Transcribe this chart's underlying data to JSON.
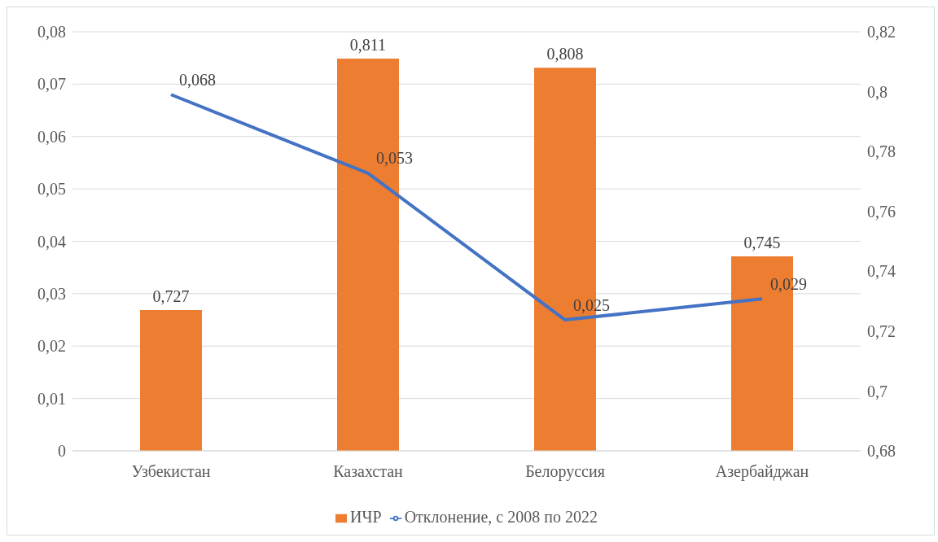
{
  "chart_data": {
    "type": "bar",
    "categories": [
      "Узбекистан",
      "Казахстан",
      "Белоруссия",
      "Азербайджан"
    ],
    "series": [
      {
        "name": "ИЧР",
        "axis": "y2",
        "color": "#ed7d31",
        "values": [
          0.727,
          0.811,
          0.808,
          0.745
        ],
        "value_labels": [
          "0,727",
          "0,811",
          "0,808",
          "0,745"
        ]
      },
      {
        "name": "Отклонение, с 2008 по 2022",
        "type": "line",
        "axis": "y",
        "color": "#4472c4",
        "values": [
          0.068,
          0.053,
          0.025,
          0.029
        ],
        "value_labels": [
          "0,068",
          "0,053",
          "0,025",
          "0,029"
        ]
      }
    ],
    "ylim": [
      0,
      0.08
    ],
    "yticks": [
      0,
      {
        "value": 0.01,
        "label": "0,01"
      },
      {
        "value": 0.02,
        "label": "0,02"
      },
      {
        "value": 0.03,
        "label": "0,03"
      },
      {
        "value": 0.04,
        "label": "0,04"
      },
      {
        "value": 0.05,
        "label": "0,05"
      },
      {
        "value": 0.06,
        "label": "0,06"
      },
      {
        "value": 0.07,
        "label": "0,07"
      },
      {
        "value": 0.08,
        "label": "0,08"
      }
    ],
    "y2lim": [
      0.68,
      0.82
    ],
    "y2ticks": [
      {
        "value": 0.68,
        "label": "0,68"
      },
      {
        "value": 0.7,
        "label": "0,7"
      },
      {
        "value": 0.72,
        "label": "0,72"
      },
      {
        "value": 0.74,
        "label": "0,74"
      },
      {
        "value": 0.76,
        "label": "0,76"
      },
      {
        "value": 0.78,
        "label": "0,78"
      },
      {
        "value": 0.8,
        "label": "0,8"
      },
      {
        "value": 0.82,
        "label": "0,82"
      }
    ],
    "grid": "y",
    "legend": "bottom",
    "marker": "none",
    "line_style": "solid"
  }
}
